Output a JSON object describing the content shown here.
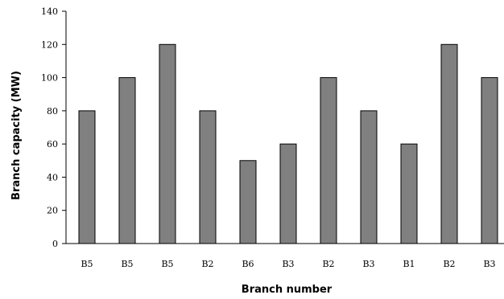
{
  "chart_data": {
    "type": "bar",
    "categories": [
      "B5",
      "B5",
      "B5",
      "B2",
      "B6",
      "B3",
      "B2",
      "B3",
      "B1",
      "B2",
      "B3"
    ],
    "values": [
      80,
      100,
      120,
      80,
      50,
      60,
      100,
      80,
      60,
      120,
      100
    ],
    "title": "",
    "xlabel": "Branch number",
    "ylabel": "Branch capacity (MW)",
    "ylim": [
      0,
      140
    ],
    "yticks": [
      0,
      20,
      40,
      60,
      80,
      100,
      120,
      140
    ],
    "grid": false,
    "legend": "none",
    "bar_color": "#808080",
    "bar_edge_color": "#000000"
  }
}
